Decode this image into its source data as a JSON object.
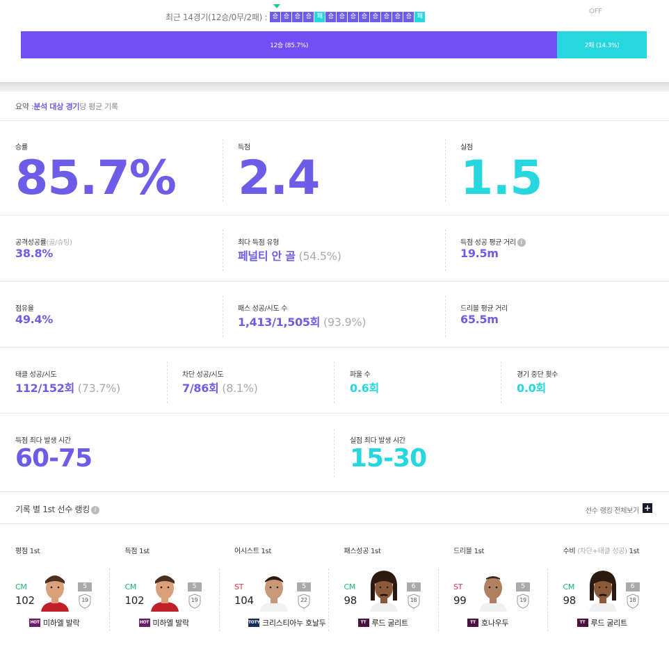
{
  "recent": {
    "label": "최근 14경기(12승/0무/2패) :",
    "results": [
      "승",
      "승",
      "승",
      "승",
      "패",
      "승",
      "승",
      "승",
      "승",
      "승",
      "승",
      "승",
      "승",
      "패"
    ],
    "off": "OFF"
  },
  "bar": {
    "win_label": "12승 (85.7%)",
    "loss_label": "2패 (14.3%)",
    "win_fraction": 0.857,
    "win_color": "#7050f5",
    "loss_color": "#26d7df"
  },
  "summary": {
    "prefix": "요약 : ",
    "highlight": "분석 대상 경기",
    "suffix": "당 평균 기록"
  },
  "stats": {
    "win_rate": {
      "label": "승률",
      "value": "85.7%"
    },
    "goals": {
      "label": "득점",
      "value": "2.4"
    },
    "conceded": {
      "label": "실점",
      "value": "1.5"
    },
    "attack_success": {
      "label": "공격성공률",
      "label_sub": "(골/슈팅)",
      "value": "38.8%"
    },
    "top_goal_type": {
      "label": "최다 득점 유형",
      "value": "페널티 안 골",
      "value_sub": " (54.5%)"
    },
    "goal_distance": {
      "label": "득점 성공 평균 거리",
      "value": "19.5m"
    },
    "possession": {
      "label": "점유율",
      "value": "49.4%"
    },
    "pass": {
      "label": "패스 성공/시도 수",
      "value": "1,413/1,505회",
      "value_sub": " (93.9%)"
    },
    "dribble_distance": {
      "label": "드리블 평균 거리",
      "value": "65.5m"
    },
    "tackle": {
      "label": "태클 성공/시도",
      "value": "112/152회",
      "value_sub": " (73.7%)"
    },
    "block": {
      "label": "차단 성공/시도",
      "value": "7/86회",
      "value_sub": " (8.1%)"
    },
    "fouls": {
      "label": "파울 수",
      "value": "0.6회"
    },
    "stoppages": {
      "label": "경기 중단 횟수",
      "value": "0.0회"
    },
    "goal_time": {
      "label": "득점 최다 발생 시간",
      "value": "60-75"
    },
    "concede_time": {
      "label": "실점 최다 발생 시간",
      "value": "15-30"
    }
  },
  "ranking": {
    "title": "기록 별 1st 선수 랭킹",
    "view_all": "선수 랭킹 전체보기",
    "plus": "+",
    "players": [
      {
        "cat": "평점 1st",
        "cat_sub": "",
        "cat_suffix": "",
        "pos": "CM",
        "ovr": "102",
        "enh": "5",
        "lvl": "19",
        "name": "미하엘 발락",
        "season": "HOT",
        "season_color": "#6a1b6a",
        "face": "ballack"
      },
      {
        "cat": "득점 1st",
        "cat_sub": "",
        "cat_suffix": "",
        "pos": "CM",
        "ovr": "102",
        "enh": "5",
        "lvl": "19",
        "name": "미하엘 발락",
        "season": "HOT",
        "season_color": "#6a1b6a",
        "face": "ballack"
      },
      {
        "cat": "어시스트 1st",
        "cat_sub": "",
        "cat_suffix": "",
        "pos": "ST",
        "ovr": "104",
        "enh": "5",
        "lvl": "22",
        "name": "크리스티아누 호날두",
        "season": "TOTY",
        "season_color": "#1a2a5a",
        "face": "ronaldo"
      },
      {
        "cat": "패스성공 1st",
        "cat_sub": "",
        "cat_suffix": "",
        "pos": "CM",
        "ovr": "98",
        "enh": "6",
        "lvl": "18",
        "name": "루드 굴리트",
        "season": "TT",
        "season_color": "#4a1040",
        "face": "gullit"
      },
      {
        "cat": "드리블 1st",
        "cat_sub": "",
        "cat_suffix": "",
        "pos": "ST",
        "ovr": "99",
        "enh": "5",
        "lvl": "19",
        "name": "호나우두",
        "season": "TT",
        "season_color": "#4a1040",
        "face": "r9"
      },
      {
        "cat": "수비 ",
        "cat_sub": "(차단+태클 성공)",
        "cat_suffix": " 1st",
        "pos": "CM",
        "ovr": "98",
        "enh": "6",
        "lvl": "18",
        "name": "루드 굴리트",
        "season": "TT",
        "season_color": "#4a1040",
        "face": "gullit"
      }
    ]
  }
}
